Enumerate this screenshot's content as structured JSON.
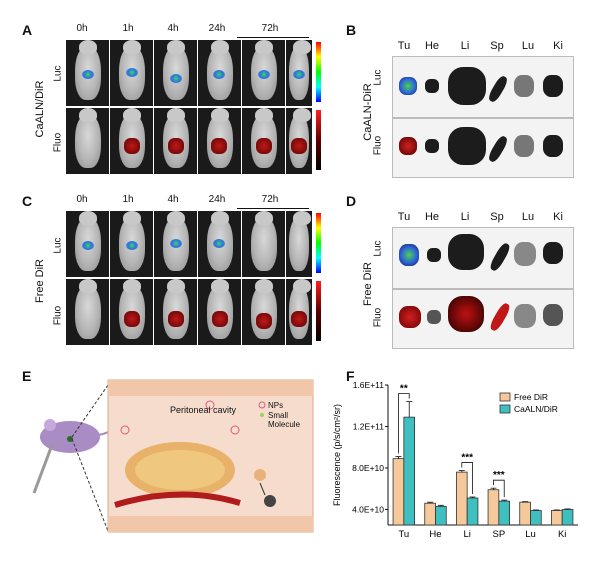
{
  "panels": {
    "A": {
      "label": "A",
      "group": "CaALN/DiR"
    },
    "B": {
      "label": "B",
      "group": "CaALN-DiR"
    },
    "C": {
      "label": "C",
      "group": "Free DiR"
    },
    "D": {
      "label": "D",
      "group": "Free DiR"
    },
    "E": {
      "label": "E",
      "cavity": "Peritoneal cavity",
      "legend_nps": "NPs",
      "legend_small": "Small",
      "legend_molecule": "Molecule"
    },
    "F": {
      "label": "F"
    }
  },
  "timepoints": [
    "0h",
    "1h",
    "4h",
    "24h",
    "72h"
  ],
  "rows": {
    "luc": "Luc",
    "fluo": "Fluo"
  },
  "organs": [
    "Tu",
    "He",
    "Li",
    "Sp",
    "Lu",
    "Ki"
  ],
  "colors": {
    "free_dir": "#f5c99a",
    "caaln_dir": "#3fbfbf",
    "edge": "#333333"
  },
  "chart_data": {
    "type": "bar",
    "ylabel": "Fluorescence (p/s/cm²/sr)",
    "categories": [
      "Tu",
      "He",
      "Li",
      "SP",
      "Lu",
      "Ki"
    ],
    "ytick_labels": [
      "4.0E+10",
      "8.0E+10",
      "1.2E+11",
      "1.6E+11"
    ],
    "ylim": [
      25000000000.0,
      160000000000.0
    ],
    "series": [
      {
        "name": "Free DiR",
        "values": [
          89000000000.0,
          46000000000.0,
          76000000000.0,
          59000000000.0,
          47000000000.0,
          39000000000.0
        ],
        "errors": [
          2000000000.0,
          1000000000.0,
          1500000000.0,
          1500000000.0,
          500000000.0,
          500000000.0
        ]
      },
      {
        "name": "CaALN/DiR",
        "values": [
          129000000000.0,
          43000000000.0,
          51000000000.0,
          48000000000.0,
          39000000000.0,
          40000000000.0
        ],
        "errors": [
          15000000000.0,
          1000000000.0,
          1000000000.0,
          1000000000.0,
          500000000.0,
          500000000.0
        ]
      }
    ],
    "significance": [
      {
        "category": "Tu",
        "text": "**"
      },
      {
        "category": "Li",
        "text": "***"
      },
      {
        "category": "SP",
        "text": "***"
      }
    ],
    "legend": "top-right"
  }
}
